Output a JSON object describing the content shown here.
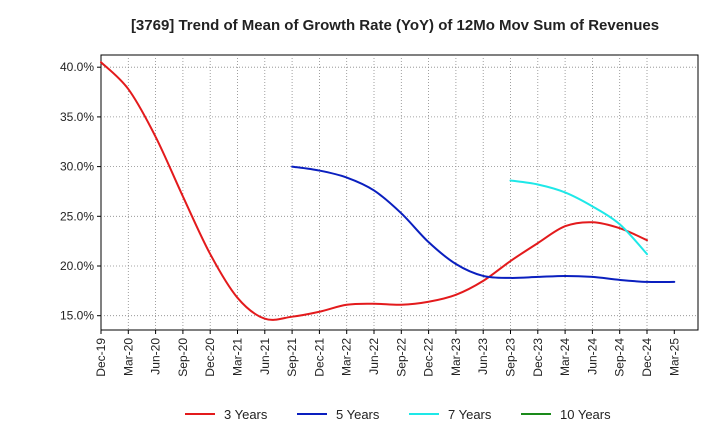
{
  "chart_data": {
    "type": "line",
    "title": "[3769]  Trend of Mean of Growth Rate (YoY) of 12Mo Mov Sum of Revenues",
    "xlabel": "",
    "ylabel": "",
    "x_ticks": [
      "Dec-19",
      "Mar-20",
      "Jun-20",
      "Sep-20",
      "Dec-20",
      "Mar-21",
      "Jun-21",
      "Sep-21",
      "Dec-21",
      "Mar-22",
      "Jun-22",
      "Sep-22",
      "Dec-22",
      "Mar-23",
      "Jun-23",
      "Sep-23",
      "Dec-23",
      "Mar-24",
      "Jun-24",
      "Sep-24",
      "Dec-24",
      "Mar-25"
    ],
    "y_ticks": [
      "15.0%",
      "20.0%",
      "25.0%",
      "30.0%",
      "35.0%",
      "40.0%"
    ],
    "y_tick_values": [
      15,
      20,
      25,
      30,
      35,
      40
    ],
    "ylim": [
      13.5,
      41.3
    ],
    "x_range_quarters": [
      0,
      21
    ],
    "grid": true,
    "series": [
      {
        "name": "3 Years",
        "color": "#e31a1c",
        "points": [
          [
            0,
            40.5
          ],
          [
            1,
            37.8
          ],
          [
            2,
            33.0
          ],
          [
            3,
            27.0
          ],
          [
            4,
            21.2
          ],
          [
            5,
            16.8
          ],
          [
            6,
            14.7
          ],
          [
            7,
            14.9
          ],
          [
            8,
            15.4
          ],
          [
            9,
            16.1
          ],
          [
            10,
            16.2
          ],
          [
            11,
            16.1
          ],
          [
            12,
            16.4
          ],
          [
            13,
            17.1
          ],
          [
            14,
            18.5
          ],
          [
            15,
            20.5
          ],
          [
            16,
            22.3
          ],
          [
            17,
            24.0
          ],
          [
            18,
            24.4
          ],
          [
            19,
            23.8
          ],
          [
            20,
            22.6
          ]
        ]
      },
      {
        "name": "5 Years",
        "color": "#0a1fbf",
        "points": [
          [
            7,
            30.0
          ],
          [
            8,
            29.6
          ],
          [
            9,
            28.9
          ],
          [
            10,
            27.6
          ],
          [
            11,
            25.3
          ],
          [
            12,
            22.4
          ],
          [
            13,
            20.2
          ],
          [
            14,
            19.0
          ],
          [
            15,
            18.8
          ],
          [
            16,
            18.9
          ],
          [
            17,
            19.0
          ],
          [
            18,
            18.9
          ],
          [
            19,
            18.6
          ],
          [
            20,
            18.4
          ],
          [
            21,
            18.4
          ]
        ]
      },
      {
        "name": "7 Years",
        "color": "#1ee8e8",
        "points": [
          [
            15,
            28.6
          ],
          [
            16,
            28.2
          ],
          [
            17,
            27.4
          ],
          [
            18,
            26.0
          ],
          [
            19,
            24.2
          ],
          [
            20,
            21.2
          ]
        ]
      },
      {
        "name": "10 Years",
        "color": "#1a8a1a",
        "points": []
      }
    ]
  }
}
